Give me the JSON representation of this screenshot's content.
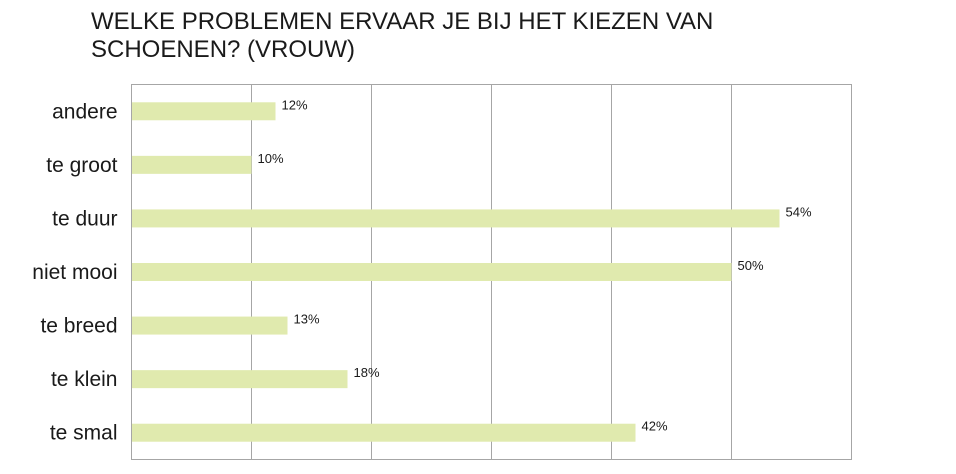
{
  "chart_data": {
    "type": "bar",
    "orientation": "horizontal",
    "title": "WELKE PROBLEMEN ERVAAR JE BIJ HET KIEZEN VAN SCHOENEN? (VROUW)",
    "categories": [
      "andere",
      "te groot",
      "te duur",
      "niet mooi",
      "te breed",
      "te klein",
      "te smal"
    ],
    "values": [
      12,
      10,
      54,
      50,
      13,
      18,
      42
    ],
    "value_labels": [
      "12%",
      "10%",
      "54%",
      "50%",
      "13%",
      "18%",
      "42%"
    ],
    "xlim": [
      0,
      60
    ],
    "x_gridlines": [
      0,
      10,
      20,
      30,
      40,
      50,
      60
    ],
    "xlabel": "",
    "ylabel": "",
    "legend": "none",
    "grid": true,
    "bar_color": "#e0eaae"
  }
}
